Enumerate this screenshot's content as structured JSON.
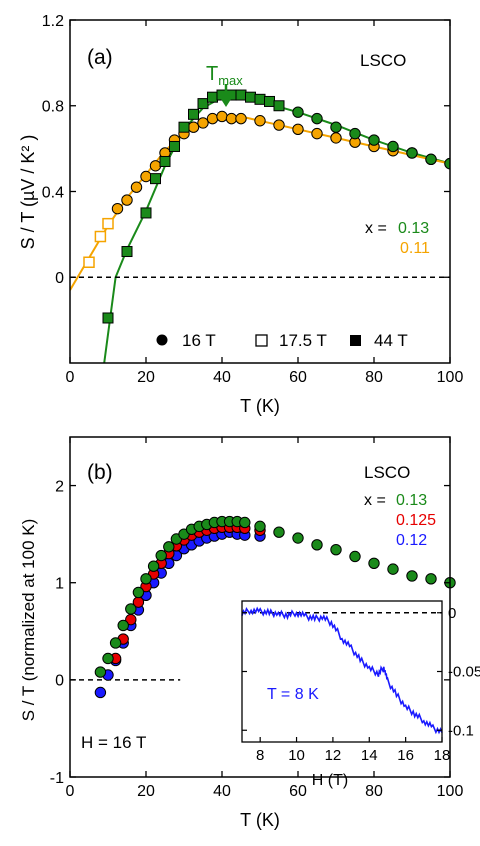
{
  "chart_data": [
    {
      "type": "scatter",
      "panel_label": "(a)",
      "material": "LSCO",
      "xlabel": "T (K)",
      "ylabel": "S / T (µV / K² )",
      "xlim": [
        0,
        100
      ],
      "ylim": [
        -0.4,
        1.2
      ],
      "xticks": [
        0,
        20,
        40,
        60,
        80,
        100
      ],
      "yticks": [
        0,
        0.4,
        0.8,
        1.2
      ],
      "ytick_labels": [
        "0",
        "0.4",
        "0.8",
        "1.2"
      ],
      "zero_line": "dashed",
      "annotation": {
        "text": "T",
        "sub": "max",
        "x": 40
      },
      "composition_prefix": "x =",
      "legend": [
        {
          "label": "16 T",
          "marker": "circle",
          "filled": true
        },
        {
          "label": "17.5 T",
          "marker": "square",
          "filled": false
        },
        {
          "label": "44 T",
          "marker": "square",
          "filled": true
        }
      ],
      "series": [
        {
          "x_label": "0.13",
          "color": "#1a8a1a",
          "points": [
            {
              "field": "44 T",
              "marker": "square",
              "data": [
                [
                  10,
                  -0.19
                ],
                [
                  15,
                  0.12
                ],
                [
                  20,
                  0.3
                ],
                [
                  22.5,
                  0.46
                ],
                [
                  25,
                  0.54
                ],
                [
                  27.5,
                  0.61
                ],
                [
                  30,
                  0.7
                ],
                [
                  32.5,
                  0.76
                ],
                [
                  35,
                  0.81
                ],
                [
                  37.5,
                  0.84
                ],
                [
                  40,
                  0.85
                ],
                [
                  42.5,
                  0.85
                ],
                [
                  45,
                  0.85
                ],
                [
                  47.5,
                  0.84
                ],
                [
                  50,
                  0.83
                ],
                [
                  52.5,
                  0.82
                ],
                [
                  55,
                  0.8
                ]
              ]
            },
            {
              "field": "16 T",
              "marker": "circle",
              "data": [
                [
                  60,
                  0.77
                ],
                [
                  65,
                  0.74
                ],
                [
                  70,
                  0.7
                ],
                [
                  75,
                  0.67
                ],
                [
                  80,
                  0.64
                ],
                [
                  85,
                  0.61
                ],
                [
                  90,
                  0.58
                ],
                [
                  95,
                  0.55
                ],
                [
                  100,
                  0.53
                ]
              ]
            }
          ],
          "fit": [
            [
              9,
              -0.4
            ],
            [
              12,
              0.0
            ],
            [
              15,
              0.13
            ],
            [
              20,
              0.31
            ],
            [
              25,
              0.52
            ],
            [
              30,
              0.69
            ],
            [
              35,
              0.79
            ],
            [
              40,
              0.84
            ],
            [
              45,
              0.84
            ],
            [
              50,
              0.82
            ],
            [
              60,
              0.77
            ],
            [
              70,
              0.71
            ],
            [
              80,
              0.64
            ],
            [
              90,
              0.58
            ],
            [
              100,
              0.53
            ]
          ]
        },
        {
          "x_label": "0.11",
          "color": "#f5a400",
          "points": [
            {
              "field": "17.5 T",
              "marker": "square",
              "data": [
                [
                  5,
                  0.07
                ],
                [
                  8,
                  0.19
                ],
                [
                  10,
                  0.25
                ]
              ]
            },
            {
              "field": "16 T",
              "marker": "circle",
              "data": [
                [
                  12.5,
                  0.32
                ],
                [
                  15,
                  0.36
                ],
                [
                  17.5,
                  0.42
                ],
                [
                  20,
                  0.47
                ],
                [
                  22.5,
                  0.52
                ],
                [
                  25,
                  0.58
                ],
                [
                  27.5,
                  0.64
                ],
                [
                  30,
                  0.67
                ],
                [
                  32.5,
                  0.7
                ],
                [
                  35,
                  0.72
                ],
                [
                  37.5,
                  0.74
                ],
                [
                  40,
                  0.75
                ],
                [
                  42.5,
                  0.74
                ],
                [
                  45,
                  0.74
                ],
                [
                  50,
                  0.73
                ],
                [
                  55,
                  0.71
                ],
                [
                  60,
                  0.69
                ],
                [
                  65,
                  0.67
                ],
                [
                  70,
                  0.65
                ],
                [
                  75,
                  0.63
                ],
                [
                  80,
                  0.61
                ],
                [
                  85,
                  0.59
                ],
                [
                  90,
                  0.58
                ],
                [
                  95,
                  0.55
                ],
                [
                  100,
                  0.53
                ]
              ]
            }
          ],
          "fit": [
            [
              0,
              -0.06
            ],
            [
              5,
              0.09
            ],
            [
              10,
              0.24
            ],
            [
              15,
              0.37
            ],
            [
              20,
              0.48
            ],
            [
              25,
              0.59
            ],
            [
              30,
              0.67
            ],
            [
              35,
              0.72
            ],
            [
              40,
              0.75
            ],
            [
              45,
              0.75
            ],
            [
              50,
              0.73
            ],
            [
              60,
              0.69
            ],
            [
              70,
              0.65
            ],
            [
              80,
              0.61
            ],
            [
              90,
              0.57
            ],
            [
              100,
              0.53
            ]
          ]
        }
      ]
    },
    {
      "type": "scatter",
      "panel_label": "(b)",
      "material": "LSCO",
      "xlabel": "T (K)",
      "ylabel": "S / T (normalized at 100 K)",
      "xlim": [
        0,
        100
      ],
      "ylim": [
        -1,
        2.5
      ],
      "xticks": [
        0,
        20,
        40,
        60,
        80,
        100
      ],
      "yticks": [
        -1,
        0,
        1,
        2
      ],
      "zero_line_until_x": 29,
      "field_label": "H = 16 T",
      "composition_prefix": "x =",
      "series": [
        {
          "x_label": "0.12",
          "color": "#1a1aff",
          "data": [
            [
              8,
              -0.13
            ],
            [
              10,
              0.05
            ],
            [
              12,
              0.2
            ],
            [
              14,
              0.38
            ],
            [
              16,
              0.56
            ],
            [
              18,
              0.72
            ],
            [
              20,
              0.87
            ],
            [
              22,
              1.0
            ],
            [
              24,
              1.1
            ],
            [
              26,
              1.2
            ],
            [
              28,
              1.28
            ],
            [
              30,
              1.35
            ],
            [
              32,
              1.39
            ],
            [
              34,
              1.43
            ],
            [
              36,
              1.46
            ],
            [
              38,
              1.48
            ],
            [
              40,
              1.5
            ],
            [
              42,
              1.52
            ],
            [
              44,
              1.5
            ],
            [
              46,
              1.49
            ],
            [
              50,
              1.48
            ]
          ]
        },
        {
          "x_label": "0.125",
          "color": "#e60000",
          "data": [
            [
              12,
              0.22
            ],
            [
              14,
              0.42
            ],
            [
              16,
              0.62
            ],
            [
              18,
              0.8
            ],
            [
              20,
              0.96
            ],
            [
              22,
              1.09
            ],
            [
              24,
              1.2
            ],
            [
              26,
              1.3
            ],
            [
              28,
              1.38
            ],
            [
              30,
              1.44
            ],
            [
              32,
              1.49
            ],
            [
              34,
              1.52
            ],
            [
              36,
              1.54
            ],
            [
              38,
              1.56
            ],
            [
              40,
              1.57
            ],
            [
              42,
              1.57
            ],
            [
              44,
              1.57
            ],
            [
              46,
              1.56
            ],
            [
              50,
              1.54
            ]
          ]
        },
        {
          "x_label": "0.13",
          "color": "#1a8a1a",
          "data": [
            [
              8,
              0.08
            ],
            [
              10,
              0.22
            ],
            [
              12,
              0.38
            ],
            [
              14,
              0.56
            ],
            [
              16,
              0.73
            ],
            [
              18,
              0.9
            ],
            [
              20,
              1.04
            ],
            [
              22,
              1.17
            ],
            [
              24,
              1.28
            ],
            [
              26,
              1.37
            ],
            [
              28,
              1.45
            ],
            [
              30,
              1.5
            ],
            [
              32,
              1.55
            ],
            [
              34,
              1.58
            ],
            [
              36,
              1.6
            ],
            [
              38,
              1.62
            ],
            [
              40,
              1.63
            ],
            [
              42,
              1.63
            ],
            [
              44,
              1.63
            ],
            [
              46,
              1.62
            ],
            [
              50,
              1.58
            ],
            [
              55,
              1.52
            ],
            [
              60,
              1.46
            ],
            [
              65,
              1.39
            ],
            [
              70,
              1.34
            ],
            [
              75,
              1.27
            ],
            [
              80,
              1.2
            ],
            [
              85,
              1.14
            ],
            [
              90,
              1.07
            ],
            [
              95,
              1.04
            ],
            [
              100,
              1.0
            ]
          ]
        }
      ],
      "inset": {
        "type": "line",
        "label": "T = 8 K",
        "xlabel": "H (T)",
        "xlim": [
          7,
          18
        ],
        "ylim": [
          -0.11,
          0.01
        ],
        "xticks": [
          8,
          10,
          12,
          14,
          16,
          18
        ],
        "yticks": [
          0,
          -0.05,
          -0.1
        ],
        "color": "#1a1aff",
        "data": [
          [
            7,
            0.0
          ],
          [
            7.5,
            0.002
          ],
          [
            8,
            0.001
          ],
          [
            8.5,
            0.0
          ],
          [
            9,
            -0.001
          ],
          [
            9.5,
            -0.002
          ],
          [
            10,
            0.0
          ],
          [
            10.5,
            -0.003
          ],
          [
            11,
            -0.005
          ],
          [
            11.5,
            -0.004
          ],
          [
            12,
            -0.01
          ],
          [
            12.5,
            -0.022
          ],
          [
            13,
            -0.03
          ],
          [
            13.5,
            -0.04
          ],
          [
            14,
            -0.047
          ],
          [
            14.5,
            -0.052
          ],
          [
            14.8,
            -0.046
          ],
          [
            15,
            -0.058
          ],
          [
            15.5,
            -0.07
          ],
          [
            16,
            -0.08
          ],
          [
            16.5,
            -0.086
          ],
          [
            17,
            -0.092
          ],
          [
            17.5,
            -0.098
          ],
          [
            18,
            -0.102
          ]
        ]
      }
    }
  ]
}
